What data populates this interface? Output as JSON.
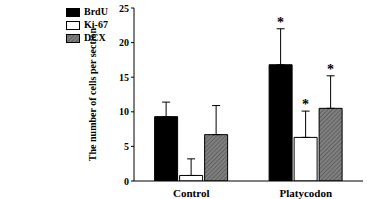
{
  "chart_data": {
    "type": "bar",
    "y_label": "The number of cells per section",
    "categories": [
      "Control",
      "Platycodon"
    ],
    "ylim": [
      0,
      25
    ],
    "yticks": [
      0,
      5,
      10,
      15,
      20,
      25
    ],
    "grid": false,
    "legend": "upper left",
    "series": [
      {
        "name": "BrdU",
        "color": "#000000",
        "values": [
          9.3,
          16.8
        ],
        "errors": [
          2.1,
          5.2
        ],
        "annotations": [
          null,
          "*"
        ]
      },
      {
        "name": "Ki-67",
        "color": "#ffffff",
        "values": [
          0.8,
          6.3
        ],
        "errors": [
          2.4,
          3.8
        ],
        "annotations": [
          null,
          "*"
        ]
      },
      {
        "name": "DCX",
        "color": "#808080",
        "values": [
          6.7,
          10.5
        ],
        "errors": [
          4.2,
          4.7
        ],
        "annotations": [
          null,
          "*"
        ]
      }
    ]
  }
}
